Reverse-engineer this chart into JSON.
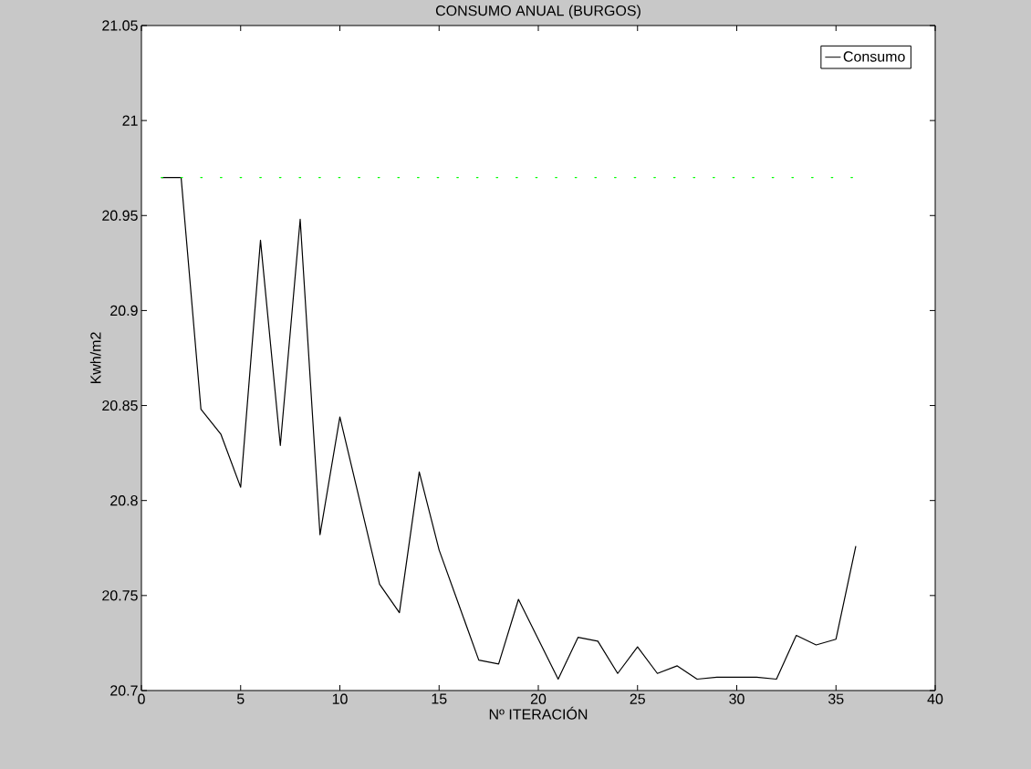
{
  "chart_data": {
    "type": "line",
    "title": "CONSUMO ANUAL (BURGOS)",
    "xlabel": "Nº ITERACIÓN",
    "ylabel": "Kwh/m2",
    "x": [
      1,
      2,
      3,
      4,
      5,
      6,
      7,
      8,
      9,
      10,
      11,
      12,
      13,
      14,
      15,
      16,
      17,
      18,
      19,
      20,
      21,
      22,
      23,
      24,
      25,
      26,
      27,
      28,
      29,
      30,
      31,
      32,
      33,
      34,
      35,
      36
    ],
    "series": [
      {
        "name": "Consumo",
        "color": "#000000",
        "line_style": "solid",
        "values": [
          20.97,
          20.97,
          20.848,
          20.835,
          20.807,
          20.937,
          20.829,
          20.948,
          20.782,
          20.844,
          20.8,
          20.756,
          20.741,
          20.815,
          20.774,
          20.745,
          20.716,
          20.714,
          20.748,
          20.727,
          20.706,
          20.728,
          20.726,
          20.709,
          20.723,
          20.709,
          20.713,
          20.706,
          20.707,
          20.707,
          20.707,
          20.706,
          20.729,
          20.724,
          20.727,
          20.776
        ]
      },
      {
        "color": "#00ff00",
        "line_style": "dotted",
        "x": [
          1,
          36
        ],
        "values": [
          20.97,
          20.97
        ]
      }
    ],
    "xlim": [
      0,
      40
    ],
    "ylim": [
      20.7,
      21.05
    ],
    "xticks": [
      0,
      5,
      10,
      15,
      20,
      25,
      30,
      35,
      40
    ],
    "yticks": [
      20.7,
      20.75,
      20.8,
      20.85,
      20.9,
      20.95,
      21,
      21.05
    ],
    "legend": "top right",
    "marker": "none"
  }
}
